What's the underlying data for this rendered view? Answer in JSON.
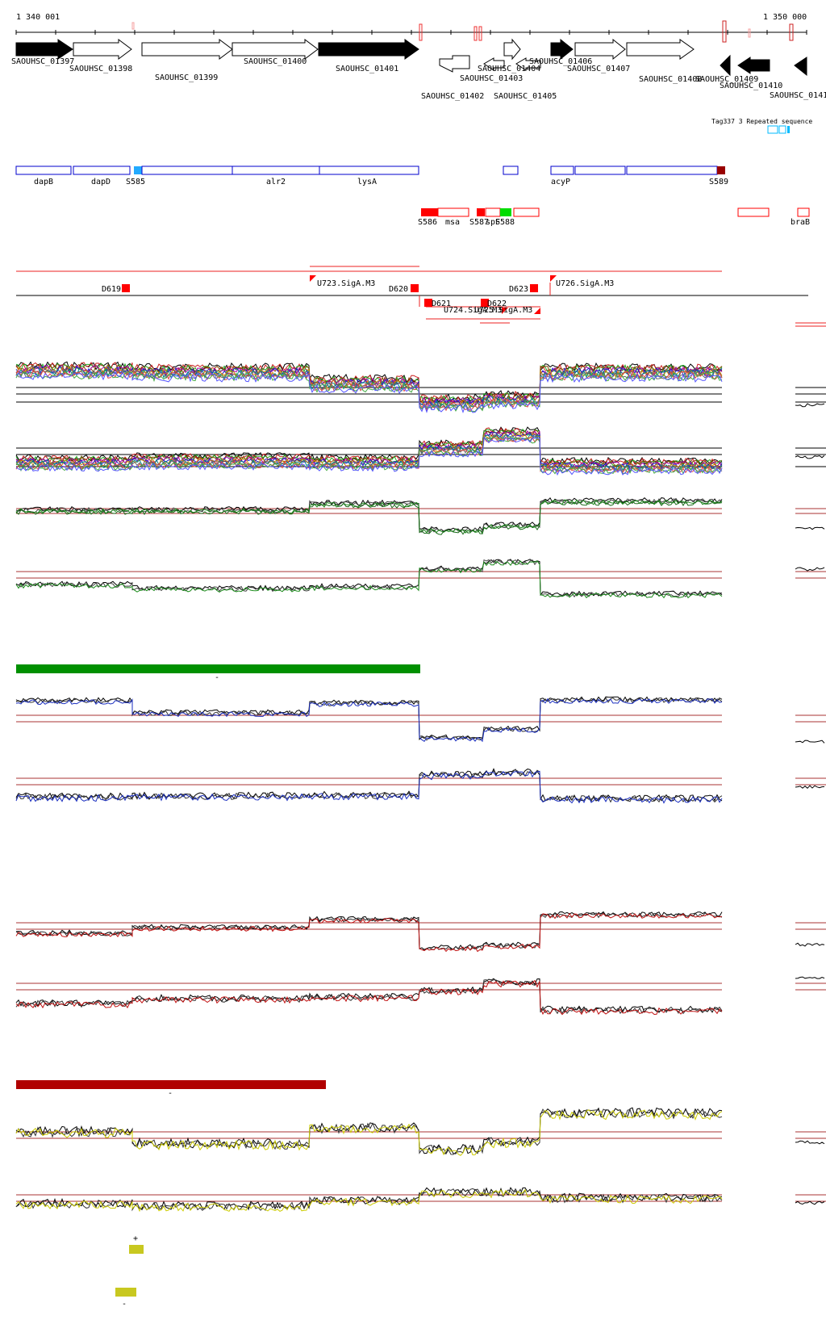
{
  "ruler": {
    "start_label": "1 340 001",
    "end_label": "1 350 000"
  },
  "genes": [
    {
      "label": "SAOUHSC_01397",
      "strand": "+",
      "fill": "black"
    },
    {
      "label": "SAOUHSC_01398",
      "strand": "+",
      "fill": "white"
    },
    {
      "label": "SAOUHSC_01399",
      "strand": "+",
      "fill": "white"
    },
    {
      "label": "SAOUHSC_01400",
      "strand": "+",
      "fill": "white"
    },
    {
      "label": "SAOUHSC_01401",
      "strand": "+",
      "fill": "black"
    },
    {
      "label": "SAOUHSC_01402",
      "strand": "-",
      "fill": "white"
    },
    {
      "label": "SAOUHSC_01403",
      "strand": "-",
      "fill": "white"
    },
    {
      "label": "SAOUHSC_01404",
      "strand": "+",
      "fill": "white"
    },
    {
      "label": "SAOUHSC_01405",
      "strand": "-",
      "fill": "white"
    },
    {
      "label": "SAOUHSC_01406",
      "strand": "+",
      "fill": "black"
    },
    {
      "label": "SAOUHSC_01407",
      "strand": "+",
      "fill": "white"
    },
    {
      "label": "SAOUHSC_01408",
      "strand": "+",
      "fill": "white"
    },
    {
      "label": "SAOUHSC_01409",
      "strand": "-",
      "fill": "black"
    },
    {
      "label": "SAOUHSC_01410",
      "strand": "-",
      "fill": "black"
    },
    {
      "label": "SAOUHSC_0141",
      "strand": "-",
      "fill": "black"
    }
  ],
  "repeat_label": "Tag337 3 Repeated sequence",
  "annotations": [
    {
      "label": "dapB"
    },
    {
      "label": "dapD"
    },
    {
      "label": "S585"
    },
    {
      "label": "alr2"
    },
    {
      "label": "lysA"
    },
    {
      "label": "acyP"
    },
    {
      "label": "S589"
    }
  ],
  "srnas": [
    {
      "label": "S586"
    },
    {
      "label": "msa"
    },
    {
      "label": "S587"
    },
    {
      "label": "spF"
    },
    {
      "label": "S588"
    },
    {
      "label": "braB"
    }
  ],
  "transcription_features": [
    {
      "label": "D619"
    },
    {
      "label": "U723.SigA.M3"
    },
    {
      "label": "D620"
    },
    {
      "label": "D621"
    },
    {
      "label": "U724.SigA.M3"
    },
    {
      "label": "D622"
    },
    {
      "label": "U725.SigA.M3"
    },
    {
      "label": "D623"
    },
    {
      "label": "U726.SigA.M3"
    }
  ],
  "condition_markers": [
    {
      "label": "-"
    },
    {
      "label": "-"
    },
    {
      "label": "+"
    },
    {
      "label": "-"
    }
  ],
  "colors": {
    "green_track": "#1a8a1a",
    "green_bar": "#009000",
    "blue_track": "#1a2ec0",
    "red_track": "#c01010",
    "red_bar": "#b00000",
    "yellow_track": "#cccc00",
    "yellow_bar": "#c8c820",
    "annotation_blue": "#0000cc",
    "srna_red": "#ff0000",
    "highlight_green": "#00dd00",
    "cyan": "#00bbff"
  }
}
